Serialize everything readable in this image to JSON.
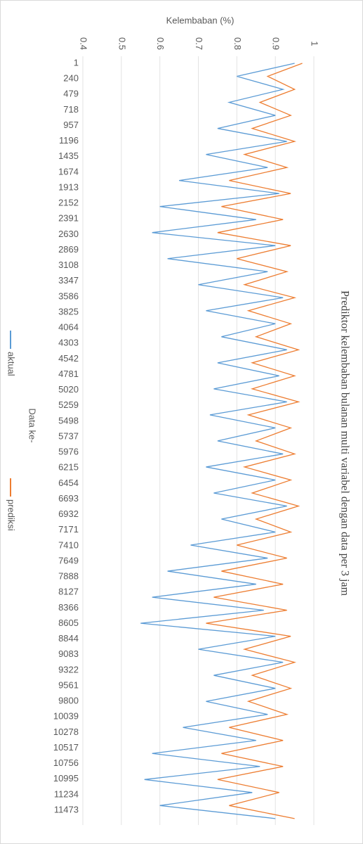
{
  "chart_data": {
    "type": "line",
    "title": "Prediktor kelembaban bulanan multi variabel dengan data per 3 jam",
    "y_label": "Kelembaban (%)",
    "x_label": "Data ke-",
    "x": [
      1,
      201,
      401,
      601,
      801,
      1001,
      1201,
      1401,
      1601,
      1801,
      2001,
      2201,
      2401,
      2601,
      2801,
      3001,
      3201,
      3401,
      3601,
      3801,
      4001,
      4201,
      4401,
      4601,
      4801,
      5001,
      5201,
      5401,
      5601,
      5801,
      6001,
      6201,
      6401,
      6601,
      6801,
      7001,
      7201,
      7401,
      7601,
      7801,
      8001,
      8201,
      8401,
      8601,
      8801,
      9001,
      9201,
      9401,
      9601,
      9801,
      10001,
      10201,
      10401,
      10601,
      10801,
      11001,
      11201,
      11401,
      11601
    ],
    "series": [
      {
        "name": "aktual",
        "color": "#5b9bd5",
        "values": [
          0.95,
          0.8,
          0.92,
          0.78,
          0.9,
          0.75,
          0.93,
          0.72,
          0.88,
          0.65,
          0.91,
          0.6,
          0.85,
          0.58,
          0.9,
          0.62,
          0.88,
          0.7,
          0.92,
          0.72,
          0.9,
          0.76,
          0.93,
          0.75,
          0.91,
          0.74,
          0.93,
          0.73,
          0.9,
          0.75,
          0.92,
          0.72,
          0.9,
          0.74,
          0.93,
          0.76,
          0.9,
          0.68,
          0.88,
          0.62,
          0.85,
          0.58,
          0.87,
          0.55,
          0.9,
          0.7,
          0.92,
          0.74,
          0.9,
          0.72,
          0.88,
          0.66,
          0.85,
          0.58,
          0.86,
          0.56,
          0.84,
          0.6,
          0.9
        ]
      },
      {
        "name": "prediksi",
        "color": "#ed7d31",
        "values": [
          0.97,
          0.88,
          0.95,
          0.86,
          0.94,
          0.84,
          0.95,
          0.82,
          0.93,
          0.78,
          0.94,
          0.76,
          0.92,
          0.75,
          0.94,
          0.8,
          0.93,
          0.82,
          0.95,
          0.83,
          0.94,
          0.85,
          0.96,
          0.84,
          0.95,
          0.84,
          0.96,
          0.83,
          0.94,
          0.85,
          0.95,
          0.82,
          0.94,
          0.84,
          0.96,
          0.85,
          0.94,
          0.8,
          0.93,
          0.76,
          0.92,
          0.74,
          0.93,
          0.72,
          0.94,
          0.82,
          0.95,
          0.84,
          0.94,
          0.83,
          0.93,
          0.78,
          0.92,
          0.76,
          0.92,
          0.75,
          0.91,
          0.78,
          0.95
        ]
      }
    ],
    "xlim": [
      1,
      11700
    ],
    "xticks": [
      1,
      240,
      479,
      718,
      957,
      1196,
      1435,
      1674,
      1913,
      2152,
      2391,
      2630,
      2869,
      3108,
      3347,
      3586,
      3825,
      4064,
      4303,
      4542,
      4781,
      5020,
      5259,
      5498,
      5737,
      5976,
      6215,
      6454,
      6693,
      6932,
      7171,
      7410,
      7649,
      7888,
      8127,
      8366,
      8605,
      8844,
      9083,
      9322,
      9561,
      9800,
      10039,
      10278,
      10517,
      10756,
      10995,
      11234,
      11473
    ],
    "ylim": [
      0.4,
      1
    ],
    "yticks": [
      0.4,
      0.5,
      0.6,
      0.7,
      0.8,
      0.9,
      1
    ],
    "grid": true
  }
}
